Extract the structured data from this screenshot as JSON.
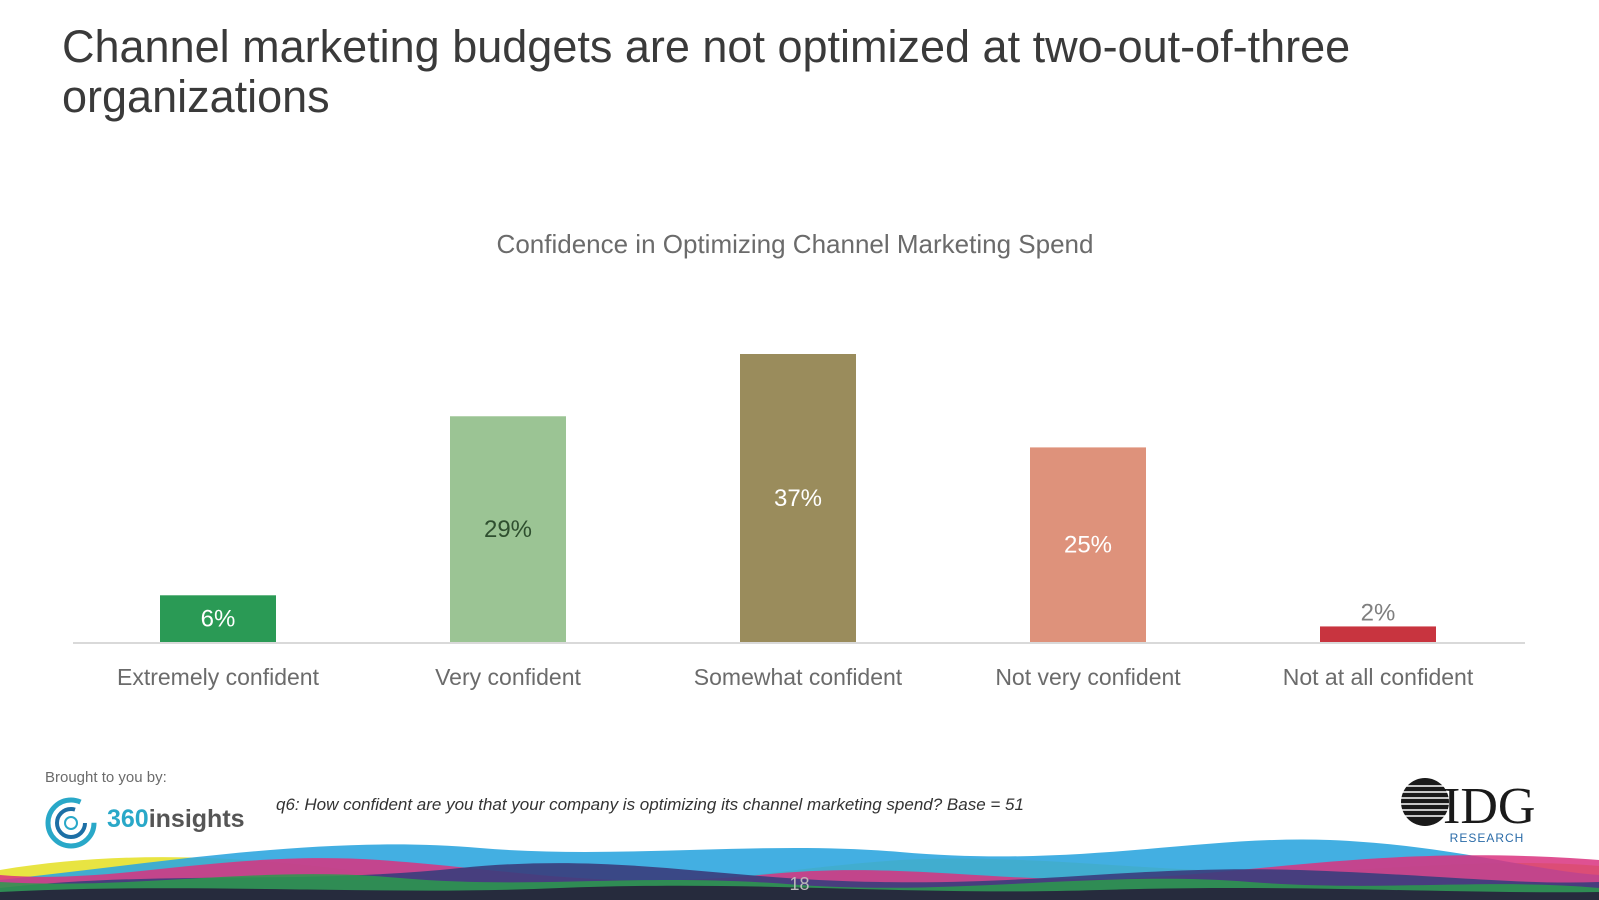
{
  "slide": {
    "title": "Channel marketing budgets are not optimized at two-out-of-three organizations",
    "page_number": "18"
  },
  "footer": {
    "brought_by": "Brought to you by:",
    "sponsor_logo_num": "360",
    "sponsor_logo_word": "insights",
    "question": "q6: How confident are you that your company is optimizing its channel marketing spend? Base = 51",
    "idg_logo_text": "IDG",
    "idg_logo_sub": "RESEARCH"
  },
  "chart_data": {
    "type": "bar",
    "title": "Confidence in Optimizing Channel Marketing Spend",
    "categories": [
      "Extremely confident",
      "Very confident",
      "Somewhat confident",
      "Not very confident",
      "Not at all confident"
    ],
    "values": [
      6,
      29,
      37,
      25,
      2
    ],
    "value_labels": [
      "6%",
      "29%",
      "37%",
      "25%",
      "2%"
    ],
    "colors": [
      "#2a9a55",
      "#9bc494",
      "#9a8c5c",
      "#de927b",
      "#c8343f"
    ],
    "label_colors": [
      "#ffffff",
      "#2f4f2f",
      "#ffffff",
      "#ffffff",
      "#7f7f7f"
    ],
    "label_outside": [
      false,
      false,
      false,
      false,
      true
    ],
    "ylim": [
      0,
      37
    ],
    "grid": false,
    "legend": "none"
  }
}
